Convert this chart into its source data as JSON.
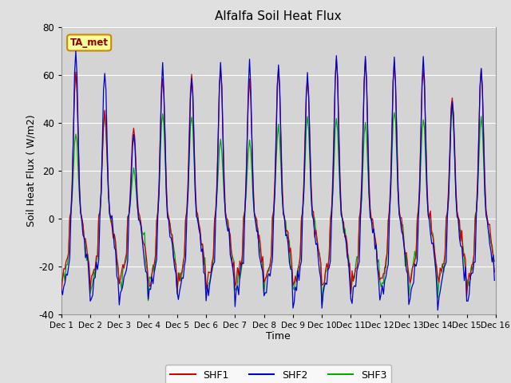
{
  "title": "Alfalfa Soil Heat Flux",
  "xlabel": "Time",
  "ylabel": "Soil Heat Flux ( W/m2)",
  "ylim": [
    -40,
    80
  ],
  "xlim": [
    0,
    360
  ],
  "background_color": "#e0e0e0",
  "plot_bg_color": "#d4d4d4",
  "grid_color": "#ffffff",
  "shf1_color": "#cc0000",
  "shf2_color": "#0000cc",
  "shf3_color": "#00aa00",
  "annotation_text": "TA_met",
  "annotation_bg": "#ffff99",
  "annotation_border": "#cc8800",
  "n_days": 15,
  "points_per_day": 24,
  "legend_labels": [
    "SHF1",
    "SHF2",
    "SHF3"
  ],
  "xtick_labels": [
    "Dec 1",
    "Dec 2",
    "Dec 3",
    "Dec 4",
    "Dec 5",
    "Dec 6",
    "Dec 7",
    "Dec 8",
    "Dec 9",
    "Dec 10",
    "Dec 11",
    "Dec 12",
    "Dec 13",
    "Dec 14",
    "Dec 15",
    "Dec 16"
  ],
  "xtick_positions": [
    0,
    24,
    48,
    72,
    96,
    120,
    144,
    168,
    192,
    216,
    240,
    264,
    288,
    312,
    336,
    360
  ],
  "ytick_labels": [
    "-40",
    "-20",
    "0",
    "20",
    "40",
    "60",
    "80"
  ],
  "ytick_positions": [
    -40,
    -20,
    0,
    20,
    40,
    60,
    80
  ],
  "shf1_peaks": [
    61,
    45,
    38,
    59,
    60,
    63,
    57,
    62,
    59,
    67,
    65,
    65,
    63,
    51,
    63
  ],
  "shf2_peaks": [
    71,
    62,
    35,
    64,
    60,
    65,
    65,
    64,
    61,
    68,
    67,
    67,
    67,
    50,
    63
  ],
  "shf3_peaks": [
    36,
    45,
    20,
    45,
    44,
    33,
    33,
    39,
    42,
    42,
    40,
    46,
    42,
    46,
    42
  ],
  "shf1_night": -28,
  "shf2_night": -35,
  "shf3_night": -30
}
